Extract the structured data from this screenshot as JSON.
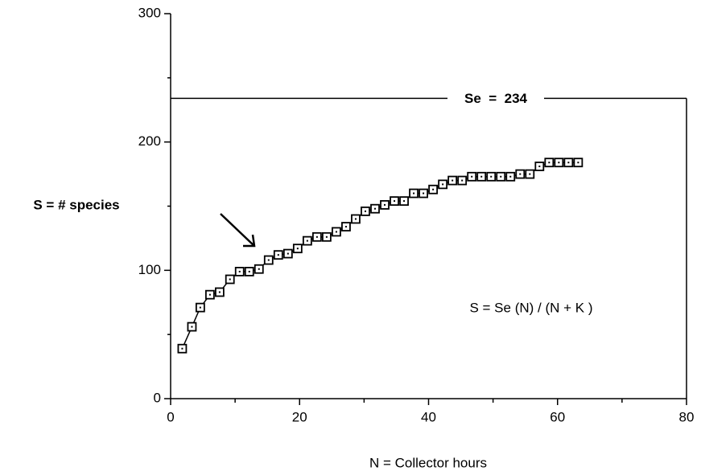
{
  "chart_data": {
    "type": "line",
    "x_label": "N = Collector hours",
    "y_label": "S = # species",
    "annotations": {
      "reference": {
        "value": 234,
        "label": "Se  =  234"
      },
      "formula": "S = Se (N) / (N + K )"
    },
    "xlim": [
      0,
      80
    ],
    "xticks": [
      0,
      20,
      40,
      60,
      80
    ],
    "xminorticks": [
      10,
      30,
      50,
      70
    ],
    "ylim": [
      0,
      300
    ],
    "yticks": [
      0,
      100,
      200,
      300
    ],
    "yminorticks": [
      50,
      150,
      250
    ],
    "color": "#000000",
    "x": [
      1.8,
      3.3,
      4.6,
      6.1,
      7.6,
      9.2,
      10.7,
      12.2,
      13.7,
      15.2,
      16.7,
      18.2,
      19.7,
      21.2,
      22.7,
      24.2,
      25.7,
      27.2,
      28.7,
      30.2,
      31.7,
      33.2,
      34.7,
      36.2,
      37.7,
      39.2,
      40.7,
      42.2,
      43.7,
      45.2,
      46.7,
      48.2,
      49.7,
      51.2,
      52.7,
      54.2,
      55.7,
      57.2,
      58.7,
      60.2,
      61.7,
      63.2
    ],
    "values": [
      39,
      56,
      71,
      81,
      83,
      93,
      99,
      99,
      101,
      108,
      112,
      113,
      117,
      123,
      126,
      126,
      130,
      134,
      140,
      146,
      148,
      151,
      154,
      154,
      160,
      160,
      163,
      167,
      170,
      170,
      173,
      173,
      173,
      173,
      173,
      175,
      175,
      181,
      184,
      184,
      184,
      184
    ]
  }
}
